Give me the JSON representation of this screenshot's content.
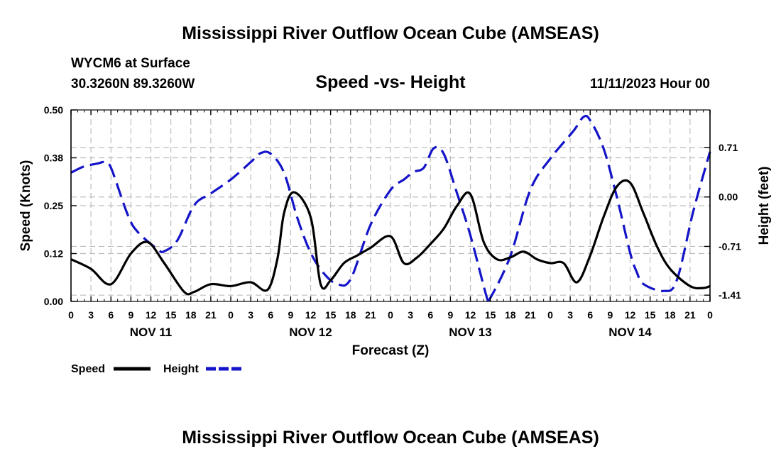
{
  "header": {
    "title": "Mississippi River Outflow Ocean Cube (AMSEAS)",
    "station": "WYCM6 at Surface",
    "coords": "30.3260N  89.3260W",
    "chart_title": "Speed -vs- Height",
    "date": "11/11/2023 Hour 00",
    "footer_title": "Mississippi River Outflow Ocean Cube (AMSEAS)"
  },
  "legend": {
    "speed_label": "Speed",
    "height_label": "Height"
  },
  "colors": {
    "speed": "#000000",
    "height": "#1414c8",
    "grid": "#bdbdbd"
  },
  "chart_data": {
    "type": "line",
    "title": "Speed -vs- Height",
    "xlabel": "Forecast (Z)",
    "ylabel_left": "Speed (Knots)",
    "ylabel_right": "Height (feet)",
    "xlim": [
      0,
      96
    ],
    "ylim_left": [
      0,
      0.5
    ],
    "ylim_right": [
      -1.5,
      1.25
    ],
    "x_ticks": [
      0,
      3,
      6,
      9,
      12,
      15,
      18,
      21,
      24,
      27,
      30,
      33,
      36,
      39,
      42,
      45,
      48,
      51,
      54,
      57,
      60,
      63,
      66,
      69,
      72,
      75,
      78,
      81,
      84,
      87,
      90,
      93,
      96
    ],
    "x_tick_labels": [
      "0",
      "3",
      "6",
      "9",
      "12",
      "15",
      "18",
      "21",
      "0",
      "3",
      "6",
      "9",
      "12",
      "15",
      "18",
      "21",
      "0",
      "3",
      "6",
      "9",
      "12",
      "15",
      "18",
      "21",
      "0",
      "3",
      "6",
      "9",
      "12",
      "15",
      "18",
      "21",
      "0"
    ],
    "left_ticks": [
      0.0,
      0.125,
      0.25,
      0.375,
      0.5
    ],
    "left_tick_labels": [
      "0.00",
      "0.12",
      "0.25",
      "0.38",
      "0.50"
    ],
    "right_ticks": [
      0.71,
      0.0,
      -0.71,
      -1.41
    ],
    "right_tick_labels": [
      "0.71",
      "0.00",
      "-0.71",
      "-1.41"
    ],
    "day_labels": [
      {
        "x": 12,
        "label": "NOV 11"
      },
      {
        "x": 36,
        "label": "NOV 12"
      },
      {
        "x": 60,
        "label": "NOV 13"
      },
      {
        "x": 84,
        "label": "NOV 14"
      }
    ],
    "series": [
      {
        "name": "Speed",
        "axis": "left",
        "style": "solid",
        "x": [
          0,
          3,
          6,
          9,
          11.5,
          14,
          17,
          18.5,
          21,
          24,
          27,
          29.5,
          31,
          32,
          33.5,
          36,
          37.5,
          39,
          41,
          43,
          45,
          48,
          50,
          52,
          54,
          56,
          58,
          60,
          62,
          64,
          66,
          68,
          70,
          72,
          74,
          76,
          78,
          80,
          82,
          84,
          86,
          88,
          90,
          93,
          95,
          96
        ],
        "values": [
          0.11,
          0.085,
          0.045,
          0.125,
          0.155,
          0.1,
          0.025,
          0.025,
          0.045,
          0.04,
          0.05,
          0.03,
          0.11,
          0.23,
          0.285,
          0.22,
          0.045,
          0.055,
          0.1,
          0.12,
          0.14,
          0.17,
          0.1,
          0.115,
          0.15,
          0.19,
          0.25,
          0.28,
          0.155,
          0.11,
          0.115,
          0.13,
          0.11,
          0.1,
          0.1,
          0.05,
          0.12,
          0.22,
          0.3,
          0.31,
          0.23,
          0.145,
          0.085,
          0.04,
          0.035,
          0.04
        ]
      },
      {
        "name": "Height",
        "axis": "right",
        "style": "dashed",
        "x": [
          0,
          2,
          4,
          5,
          6,
          8.5,
          10,
          13,
          14,
          16,
          18.5,
          21,
          24,
          27,
          28.5,
          30,
          32,
          34,
          36,
          38,
          40,
          42,
          45,
          48,
          50,
          51.5,
          53,
          54.5,
          56,
          58,
          60,
          62.5,
          63,
          66,
          69,
          72,
          75.5,
          77,
          78,
          80,
          82,
          84,
          85,
          86,
          89,
          91,
          93.5,
          96
        ],
        "values": [
          0.35,
          0.44,
          0.48,
          0.5,
          0.42,
          -0.25,
          -0.5,
          -0.75,
          -0.78,
          -0.62,
          -0.12,
          0.05,
          0.25,
          0.5,
          0.63,
          0.62,
          0.35,
          -0.3,
          -0.8,
          -1.1,
          -1.25,
          -1.18,
          -0.4,
          0.1,
          0.25,
          0.36,
          0.42,
          0.7,
          0.62,
          0.05,
          -0.55,
          -1.45,
          -1.45,
          -0.85,
          0.1,
          0.55,
          0.95,
          1.15,
          1.1,
          0.7,
          0.0,
          -0.8,
          -1.08,
          -1.25,
          -1.35,
          -1.2,
          -0.2,
          0.65
        ]
      }
    ]
  }
}
